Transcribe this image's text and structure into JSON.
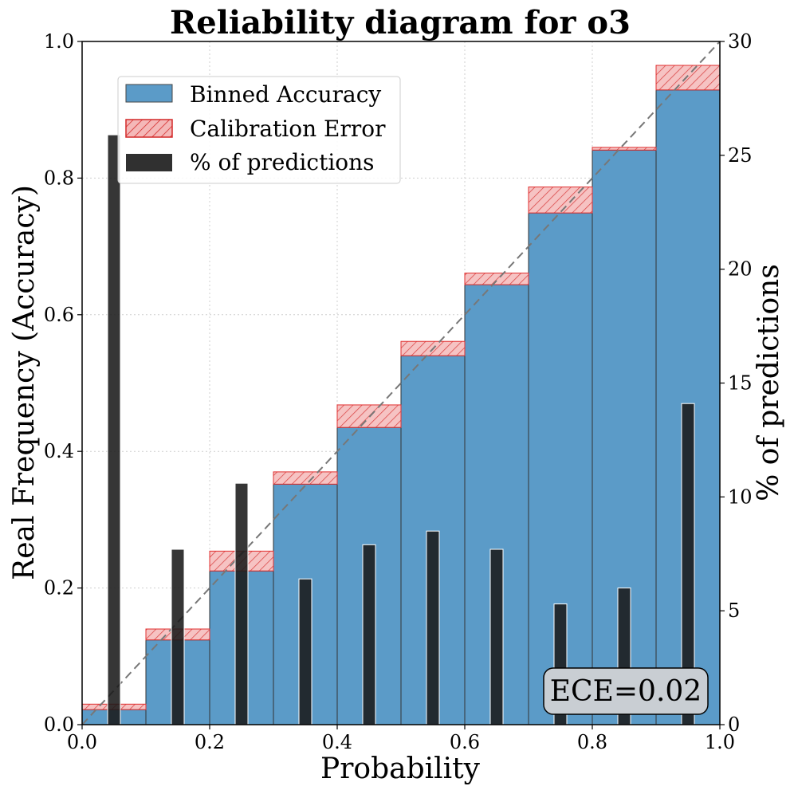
{
  "chart_data": {
    "type": "bar",
    "title": "Reliability diagram for o3",
    "xlabel": "Probability",
    "ylabel": "Real Frequency (Accuracy)",
    "y2label": "% of predictions",
    "xlim": [
      0,
      1
    ],
    "ylim": [
      0,
      1
    ],
    "y2lim": [
      0,
      30
    ],
    "xticks": [
      "0.0",
      "0.2",
      "0.4",
      "0.6",
      "0.8",
      "1.0"
    ],
    "yticks": [
      "0.0",
      "0.2",
      "0.4",
      "0.6",
      "0.8",
      "1.0"
    ],
    "y2ticks": [
      "0",
      "5",
      "10",
      "15",
      "20",
      "25",
      "30"
    ],
    "grid": true,
    "legend_position": "top-left",
    "legend": [
      "Binned Accuracy",
      "Calibration Error",
      "% of predictions"
    ],
    "bins": [
      {
        "center": 0.05,
        "accuracy": 0.022,
        "confidence": 0.03,
        "percent": 25.9
      },
      {
        "center": 0.15,
        "accuracy": 0.124,
        "confidence": 0.14,
        "percent": 7.7
      },
      {
        "center": 0.25,
        "accuracy": 0.225,
        "confidence": 0.254,
        "percent": 10.6
      },
      {
        "center": 0.35,
        "accuracy": 0.352,
        "confidence": 0.37,
        "percent": 6.4
      },
      {
        "center": 0.45,
        "accuracy": 0.435,
        "confidence": 0.468,
        "percent": 7.9
      },
      {
        "center": 0.55,
        "accuracy": 0.54,
        "confidence": 0.561,
        "percent": 8.5
      },
      {
        "center": 0.65,
        "accuracy": 0.644,
        "confidence": 0.661,
        "percent": 7.7
      },
      {
        "center": 0.75,
        "accuracy": 0.749,
        "confidence": 0.787,
        "percent": 5.3
      },
      {
        "center": 0.85,
        "accuracy": 0.841,
        "confidence": 0.845,
        "percent": 6.0
      },
      {
        "center": 0.95,
        "accuracy": 0.929,
        "confidence": 0.965,
        "percent": 14.1
      }
    ],
    "annotation": "ECE=0.02",
    "colors": {
      "accuracy": "#5b9bc8",
      "error": "#e03030",
      "error_fill": "#f4b8b8",
      "predictions": "#1a1a1a",
      "diagonal": "#777777"
    }
  }
}
